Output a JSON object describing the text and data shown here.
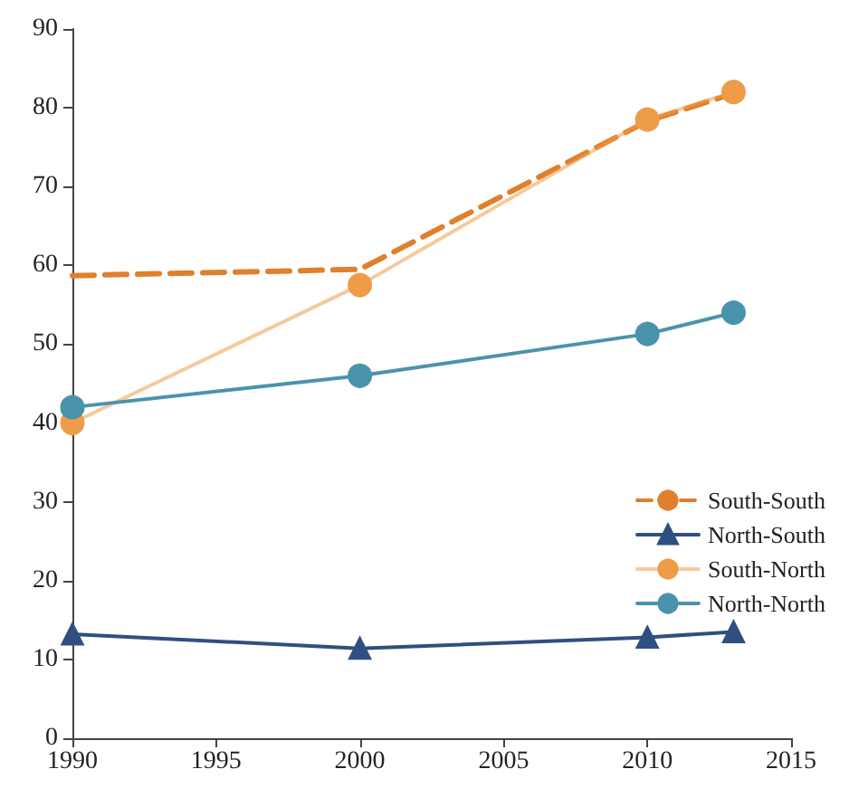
{
  "chart_data": {
    "type": "line",
    "x": [
      1990,
      2000,
      2010,
      2013
    ],
    "series": [
      {
        "name": "South-South",
        "color": "#e07f2c",
        "values": [
          58.7,
          59.5,
          78.3,
          81.8
        ],
        "line_style": "dashed",
        "marker": "none"
      },
      {
        "name": "North-South",
        "color": "#2f4f80",
        "values": [
          13.2,
          11.4,
          12.8,
          13.5
        ],
        "line_style": "solid",
        "marker": "triangle"
      },
      {
        "name": "South-North",
        "color": "#ef9c48",
        "values": [
          40,
          57.5,
          78.5,
          82
        ],
        "line_style": "solid",
        "marker": "circle"
      },
      {
        "name": "North-North",
        "color": "#4a93ad",
        "values": [
          42,
          46,
          51.3,
          54
        ],
        "line_style": "solid",
        "marker": "circle"
      }
    ],
    "xlim": [
      1990,
      2015
    ],
    "xticks": [
      1990,
      1995,
      2000,
      2005,
      2010,
      2015
    ],
    "ylim": [
      0,
      90
    ],
    "yticks": [
      0,
      10,
      20,
      30,
      40,
      50,
      60,
      70,
      80,
      90
    ],
    "grid": false,
    "legend": "right"
  }
}
